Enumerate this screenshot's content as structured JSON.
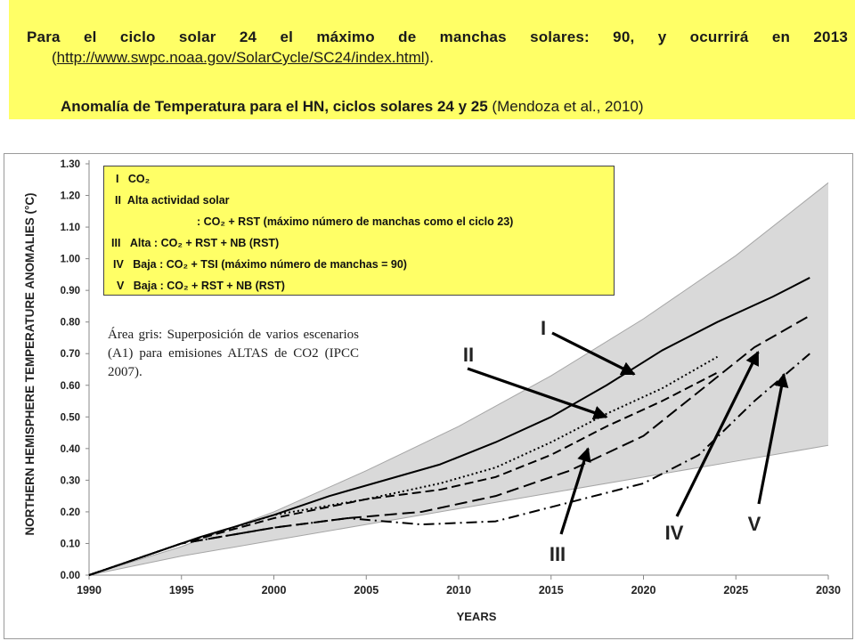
{
  "header": {
    "line1": "Para el ciclo solar 24 el máximo de manchas solares: 90, y ocurrirá en 2013",
    "line2_open": "(",
    "line2_url": "http://www.swpc.noaa.gov/SolarCycle/SC24/index.html",
    "line2_close": ").",
    "line3_bold": "Anomalía de Temperatura para el HN, ciclos solares 24 y 25",
    "line3_ref": "(Mendoza et al., 2010)"
  },
  "legend_box": [
    {
      "num": "I",
      "text": "CO₂"
    },
    {
      "num": "II",
      "text": "Alta actividad solar"
    },
    {
      "num": "",
      "text": ": CO₂ + RST (máximo número de manchas como el ciclo 23)"
    },
    {
      "num": "III",
      "text": "Alta : CO₂ + RST + NB (RST)"
    },
    {
      "num": "IV",
      "text": "Baja : CO₂ + TSI (máximo número de manchas = 90)"
    },
    {
      "num": "V",
      "text": "Baja : CO₂ + RST + NB (RST)"
    }
  ],
  "note": "Área gris: Superposición de varios escenarios (A1) para emisiones ALTAS de CO2 (IPCC 2007).",
  "colors": {
    "header_bg": "#ffff66",
    "legend_bg": "#ffff66",
    "band": "#d9d9d9",
    "band_edge": "#a6a6a6",
    "series": "#000000"
  },
  "chart_data": {
    "type": "line",
    "xlabel": "YEARS",
    "ylabel": "NORTHERN HEMISPHERE TEMPERATURE ANOMALIES (°C)",
    "xlim": [
      1990,
      2030
    ],
    "ylim": [
      0.0,
      1.3
    ],
    "xticks": [
      1990,
      1995,
      2000,
      2005,
      2010,
      2015,
      2020,
      2025,
      2030
    ],
    "yticks": [
      0.0,
      0.1,
      0.2,
      0.3,
      0.4,
      0.5,
      0.6,
      0.7,
      0.8,
      0.9,
      1.0,
      1.1,
      1.2,
      1.3
    ],
    "ytick_labels": [
      "0.00",
      "0.10",
      "0.20",
      "0.30",
      "0.40",
      "0.50",
      "0.60",
      "0.70",
      "0.80",
      "0.90",
      "1.00",
      "1.10",
      "1.20",
      "1.30"
    ],
    "band": {
      "upper": [
        [
          1990,
          0.0
        ],
        [
          1995,
          0.09
        ],
        [
          2000,
          0.2
        ],
        [
          2005,
          0.33
        ],
        [
          2010,
          0.47
        ],
        [
          2015,
          0.63
        ],
        [
          2020,
          0.81
        ],
        [
          2025,
          1.01
        ],
        [
          2030,
          1.24
        ]
      ],
      "lower": [
        [
          1990,
          0.0
        ],
        [
          1995,
          0.06
        ],
        [
          2000,
          0.11
        ],
        [
          2005,
          0.16
        ],
        [
          2010,
          0.21
        ],
        [
          2015,
          0.26
        ],
        [
          2020,
          0.31
        ],
        [
          2025,
          0.36
        ],
        [
          2030,
          0.41
        ]
      ]
    },
    "series": [
      {
        "name": "I",
        "style": "solid",
        "points": [
          [
            1990,
            0.0
          ],
          [
            1993,
            0.06
          ],
          [
            1996,
            0.12
          ],
          [
            2000,
            0.19
          ],
          [
            2003,
            0.25
          ],
          [
            2006,
            0.3
          ],
          [
            2009,
            0.35
          ],
          [
            2012,
            0.42
          ],
          [
            2015,
            0.5
          ],
          [
            2018,
            0.6
          ],
          [
            2021,
            0.71
          ],
          [
            2024,
            0.8
          ],
          [
            2027,
            0.88
          ],
          [
            2029,
            0.94
          ]
        ]
      },
      {
        "name": "II",
        "style": "dotted",
        "points": [
          [
            1990,
            0.0
          ],
          [
            1995,
            0.1
          ],
          [
            2000,
            0.19
          ],
          [
            2005,
            0.24
          ],
          [
            2009,
            0.29
          ],
          [
            2012,
            0.34
          ],
          [
            2015,
            0.42
          ],
          [
            2018,
            0.51
          ],
          [
            2021,
            0.59
          ],
          [
            2024,
            0.69
          ]
        ]
      },
      {
        "name": "III",
        "style": "dashed",
        "points": [
          [
            1990,
            0.0
          ],
          [
            1995,
            0.1
          ],
          [
            2000,
            0.18
          ],
          [
            2005,
            0.24
          ],
          [
            2009,
            0.27
          ],
          [
            2012,
            0.31
          ],
          [
            2015,
            0.38
          ],
          [
            2018,
            0.47
          ],
          [
            2021,
            0.55
          ],
          [
            2024,
            0.64
          ]
        ]
      },
      {
        "name": "IV",
        "style": "longdash",
        "points": [
          [
            1990,
            0.0
          ],
          [
            1995,
            0.1
          ],
          [
            2000,
            0.15
          ],
          [
            2004,
            0.18
          ],
          [
            2008,
            0.2
          ],
          [
            2012,
            0.25
          ],
          [
            2016,
            0.33
          ],
          [
            2020,
            0.44
          ],
          [
            2023,
            0.58
          ],
          [
            2026,
            0.72
          ],
          [
            2029,
            0.82
          ]
        ]
      },
      {
        "name": "V",
        "style": "dashdot",
        "points": [
          [
            1990,
            0.0
          ],
          [
            1995,
            0.1
          ],
          [
            2000,
            0.15
          ],
          [
            2004,
            0.18
          ],
          [
            2008,
            0.16
          ],
          [
            2012,
            0.17
          ],
          [
            2016,
            0.23
          ],
          [
            2020,
            0.29
          ],
          [
            2023,
            0.38
          ],
          [
            2026,
            0.55
          ],
          [
            2029,
            0.7
          ]
        ]
      }
    ],
    "annotations": [
      {
        "label": "I",
        "arrow_to": [
          2019.5,
          0.635
        ]
      },
      {
        "label": "II",
        "arrow_to": [
          2018,
          0.5
        ]
      },
      {
        "label": "III",
        "arrow_to": [
          2017,
          0.4
        ]
      },
      {
        "label": "IV",
        "arrow_to": [
          2026.2,
          0.705
        ]
      },
      {
        "label": "V",
        "arrow_to": [
          2027.6,
          0.635
        ]
      }
    ]
  }
}
